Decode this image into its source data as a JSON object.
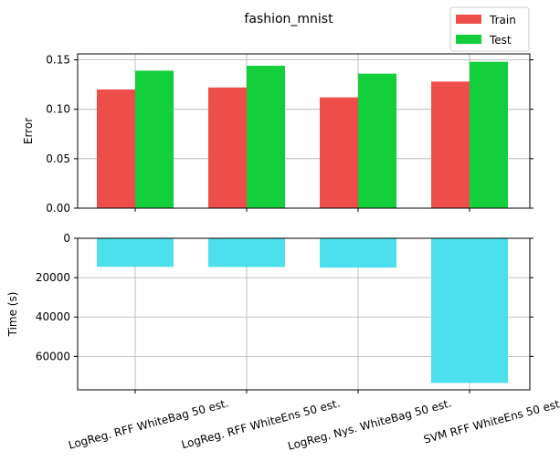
{
  "chart_data": [
    {
      "type": "bar",
      "title": "fashion_mnist",
      "ylabel": "Error",
      "ylim": [
        0.0,
        0.156
      ],
      "yticks": [
        "0.00",
        "0.05",
        "0.10",
        "0.15"
      ],
      "grid": true,
      "legend": "top-right",
      "categories": [
        "LogReg. RFF WhiteBag 50 est.",
        "LogReg. RFF WhiteEns 50 est.",
        "LogReg. Nys. WhiteBag 50 est.",
        "SVM RFF WhiteEns 50 est."
      ],
      "series": [
        {
          "name": "Train",
          "color": "#ee4e4a",
          "values": [
            0.12,
            0.122,
            0.112,
            0.128
          ]
        },
        {
          "name": "Test",
          "color": "#12cf3b",
          "values": [
            0.139,
            0.144,
            0.136,
            0.148
          ]
        }
      ]
    },
    {
      "type": "bar",
      "ylabel": "Time (s)",
      "ylim": [
        0,
        77000
      ],
      "y_inverted": true,
      "yticks": [
        "0",
        "20000",
        "40000",
        "60000"
      ],
      "grid": true,
      "categories": [
        "LogReg. RFF WhiteBag 50 est.",
        "LogReg. RFF WhiteEns 50 est.",
        "LogReg. Nys. WhiteBag 50 est.",
        "SVM RFF WhiteEns 50 est."
      ],
      "series": [
        {
          "color": "#4be0ec",
          "values": [
            14500,
            14600,
            14900,
            73500
          ]
        }
      ]
    }
  ]
}
